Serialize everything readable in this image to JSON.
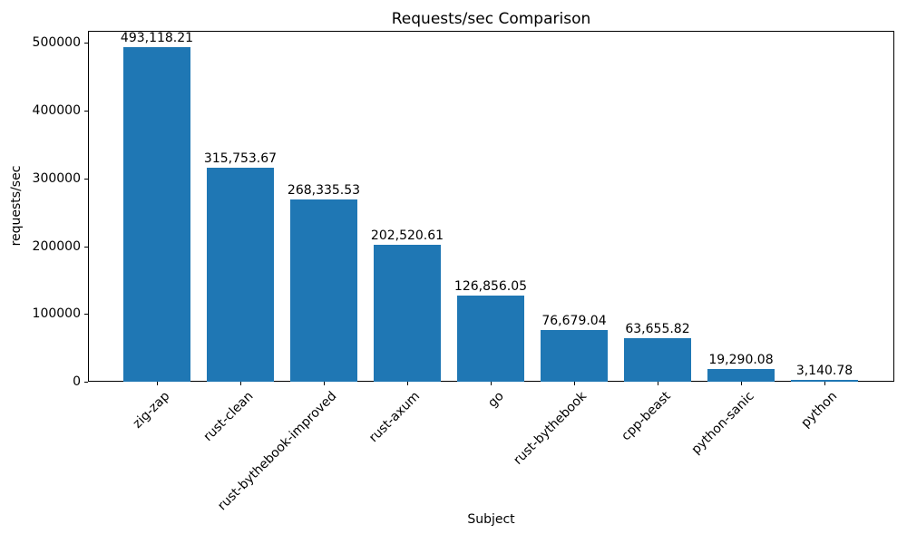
{
  "chart_data": {
    "type": "bar",
    "title": "Requests/sec Comparison",
    "xlabel": "Subject",
    "ylabel": "requests/sec",
    "categories": [
      "zig-zap",
      "rust-clean",
      "rust-bythebook-improved",
      "rust-axum",
      "go",
      "rust-bythebook",
      "cpp-beast",
      "python-sanic",
      "python"
    ],
    "values": [
      493118.21,
      315753.67,
      268335.53,
      202520.61,
      126856.05,
      76679.04,
      63655.82,
      19290.08,
      3140.78
    ],
    "value_labels": [
      "493,118.21",
      "315,753.67",
      "268,335.53",
      "202,520.61",
      "126,856.05",
      "76,679.04",
      "63,655.82",
      "19,290.08",
      "3,140.78"
    ],
    "yticks": [
      0,
      100000,
      200000,
      300000,
      400000,
      500000
    ],
    "ytick_labels": [
      "0",
      "100000",
      "200000",
      "300000",
      "400000",
      "500000"
    ],
    "ylim": [
      0,
      517774
    ],
    "bar_color": "#1f77b4",
    "grid": false,
    "legend": null
  }
}
